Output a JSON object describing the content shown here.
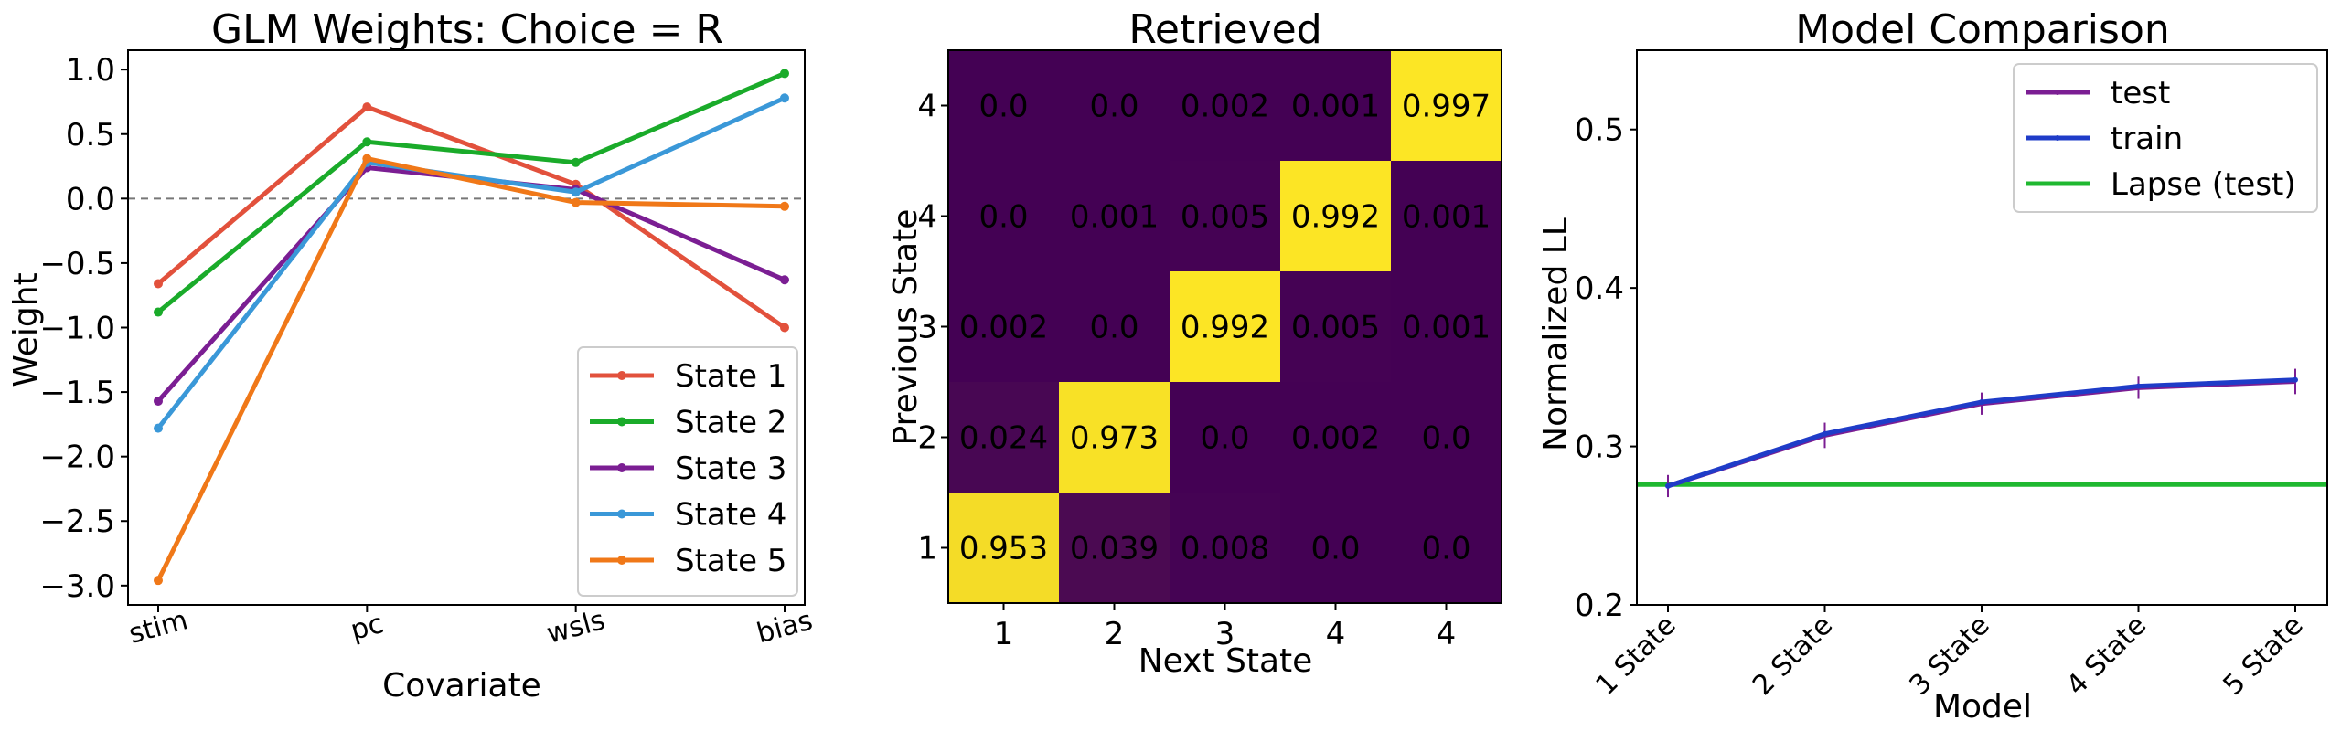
{
  "chart_data": [
    {
      "type": "line",
      "title": "GLM Weights: Choice = R",
      "xlabel": "Covariate",
      "ylabel": "Weight",
      "categories": [
        "stim",
        "pc",
        "wsls",
        "bias"
      ],
      "ylim": [
        -3.15,
        1.15
      ],
      "yticks": [
        1.0,
        0.5,
        0.0,
        -0.5,
        -1.0,
        -1.5,
        -2.0,
        -2.5,
        -3.0
      ],
      "ytick_labels": [
        "1.0",
        "0.5",
        "0.0",
        "−0.5",
        "−1.0",
        "−1.5",
        "−2.0",
        "−2.5",
        "−3.0"
      ],
      "reference_line": 0,
      "legend_position": "lower-right",
      "series": [
        {
          "name": "State 1",
          "color": "#e2513c",
          "values": [
            -0.66,
            0.71,
            0.11,
            -1.0
          ]
        },
        {
          "name": "State 2",
          "color": "#1aab2a",
          "values": [
            -0.88,
            0.44,
            0.28,
            0.97
          ]
        },
        {
          "name": "State 3",
          "color": "#7b1e93",
          "values": [
            -1.57,
            0.24,
            0.07,
            -0.63
          ]
        },
        {
          "name": "State 4",
          "color": "#3a98d8",
          "values": [
            -1.78,
            0.28,
            0.05,
            0.78
          ]
        },
        {
          "name": "State 5",
          "color": "#f07818",
          "values": [
            -2.96,
            0.31,
            -0.03,
            -0.06
          ]
        }
      ]
    },
    {
      "type": "heatmap",
      "title": "Retrieved",
      "xlabel": "Next State",
      "ylabel": "Previous State",
      "x_tick_labels": [
        "1",
        "2",
        "3",
        "4",
        "4"
      ],
      "y_tick_labels": [
        "4",
        "4",
        "3",
        "2",
        "1"
      ],
      "colors": {
        "low": "#440154",
        "high": "#fde725"
      },
      "values": [
        [
          "0.0",
          "0.0",
          "0.002",
          "0.001",
          "0.997"
        ],
        [
          "0.0",
          "0.001",
          "0.005",
          "0.992",
          "0.001"
        ],
        [
          "0.002",
          "0.0",
          "0.992",
          "0.005",
          "0.001"
        ],
        [
          "0.024",
          "0.973",
          "0.0",
          "0.002",
          "0.0"
        ],
        [
          "0.953",
          "0.039",
          "0.008",
          "0.0",
          "0.0"
        ]
      ]
    },
    {
      "type": "line",
      "title": "Model Comparison",
      "xlabel": "Model",
      "ylabel": "Normalized LL",
      "categories": [
        "1 State",
        "2 State",
        "3 State",
        "4 State",
        "5 State"
      ],
      "ylim": [
        0.2,
        0.55
      ],
      "yticks": [
        0.5,
        0.4,
        0.3,
        0.2
      ],
      "ytick_labels": [
        "0.5",
        "0.4",
        "0.3",
        "0.2"
      ],
      "legend_position": "upper-right",
      "series": [
        {
          "name": "test",
          "color": "#7b1e93",
          "values": [
            0.275,
            0.307,
            0.327,
            0.337,
            0.341
          ],
          "errors": [
            0.007,
            0.008,
            0.007,
            0.007,
            0.008
          ]
        },
        {
          "name": "train",
          "color": "#1f3cc8",
          "values": [
            0.275,
            0.308,
            0.328,
            0.338,
            0.342
          ]
        }
      ],
      "hlines": [
        {
          "name": "Lapse (test)",
          "color": "#1fb830",
          "value": 0.276
        }
      ]
    }
  ]
}
